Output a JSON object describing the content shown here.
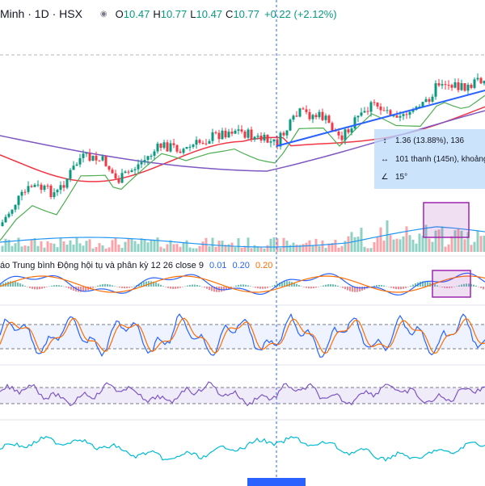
{
  "header": {
    "symbol": "Minh · 1D · HSX",
    "open_label": "O",
    "open": "10.47",
    "high_label": "H",
    "high": "10.77",
    "low_label": "L",
    "low": "10.47",
    "close_label": "C",
    "close": "10.77",
    "change": "+0.22 (+2.12%)"
  },
  "macd_legend": {
    "title": "áo Trung bình Động hội tụ và phân kỳ 12 26 close 9",
    "value1": "0.01",
    "value2": "0.20",
    "value3": "0.20"
  },
  "tooltip": {
    "price_range": "1.36 (13.88%), 136",
    "bars_range": "101 thanh (145n), khoảng",
    "angle": "15°"
  },
  "colors": {
    "up": "#089981",
    "down": "#f23645",
    "trend_line": "#2962ff",
    "ma_red": "#f23645",
    "ma_purple": "#7e57c2",
    "ma_green": "#4caf50",
    "macd_line": "#2962ff",
    "signal_line": "#ff6d00",
    "stoch_k": "#2962ff",
    "stoch_d": "#ff6d00",
    "rsi_line": "#7e57c2",
    "bottom_line": "#00bcd4",
    "highlight": "#9c27b0"
  },
  "icons": {
    "price_range": "arrows-vertical-icon",
    "bars_range": "arrows-horizontal-icon",
    "angle": "angle-icon"
  }
}
